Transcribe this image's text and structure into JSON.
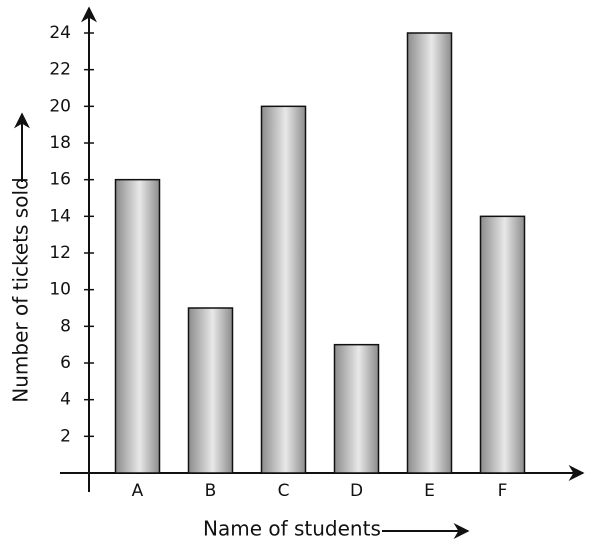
{
  "chart_data": {
    "type": "bar",
    "x_label": "Name of students",
    "y_label": "Number of tickets sold",
    "categories": [
      "A",
      "B",
      "C",
      "D",
      "E",
      "F"
    ],
    "values": [
      16,
      9,
      20,
      7,
      24,
      14
    ],
    "color": "#8c8c8c",
    "ylim": [
      0,
      24
    ],
    "yticks": [
      2,
      4,
      6,
      8,
      10,
      12,
      14,
      16,
      18,
      20,
      22,
      24
    ],
    "grid": false
  }
}
